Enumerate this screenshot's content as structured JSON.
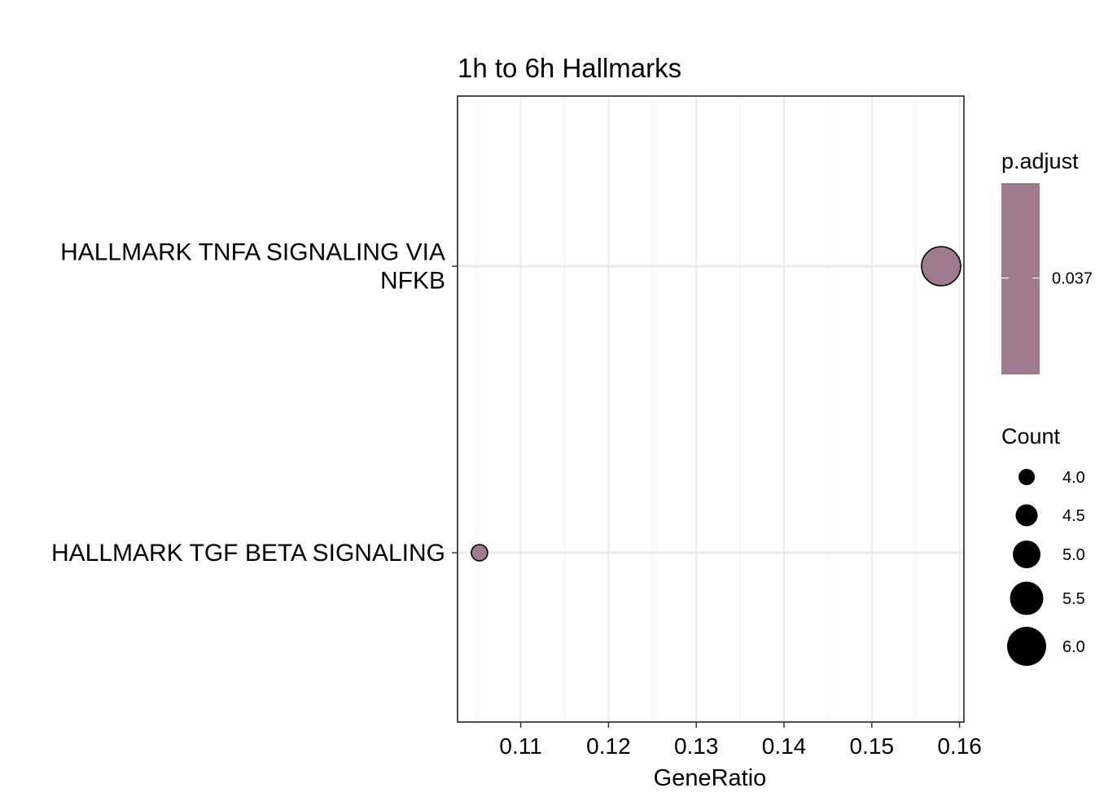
{
  "chart_data": {
    "type": "scatter",
    "title": "1h to 6h Hallmarks",
    "xlabel": "GeneRatio",
    "ylabel": "",
    "xlim": [
      0.1028,
      0.1605
    ],
    "xticks": [
      0.11,
      0.12,
      0.13,
      0.14,
      0.15,
      0.16
    ],
    "xtick_labels": [
      "0.11",
      "0.12",
      "0.13",
      "0.14",
      "0.15",
      "0.16"
    ],
    "categories": [
      "HALLMARK TNFA SIGNALING VIA NFKB",
      "HALLMARK TGF BETA SIGNALING"
    ],
    "category_label_lines": [
      [
        "HALLMARK TNFA SIGNALING VIA",
        "NFKB"
      ],
      [
        "HALLMARK TGF BETA SIGNALING"
      ]
    ],
    "points": [
      {
        "category": "HALLMARK TNFA SIGNALING VIA NFKB",
        "x": 0.1579,
        "count": 6,
        "p_adjust": 0.037
      },
      {
        "category": "HALLMARK TGF BETA SIGNALING",
        "x": 0.1053,
        "count": 4,
        "p_adjust": 0.037
      }
    ],
    "grid": true,
    "point_color": "#9e7a90",
    "legends": {
      "color": {
        "title": "p.adjust",
        "ticks": [
          0.037
        ],
        "tick_labels": [
          "0.037"
        ],
        "color": "#9e7a90"
      },
      "size": {
        "title": "Count",
        "values": [
          4.0,
          4.5,
          5.0,
          5.5,
          6.0
        ],
        "labels": [
          "4.0",
          "4.5",
          "5.0",
          "5.5",
          "6.0"
        ]
      },
      "placement": "right"
    }
  }
}
